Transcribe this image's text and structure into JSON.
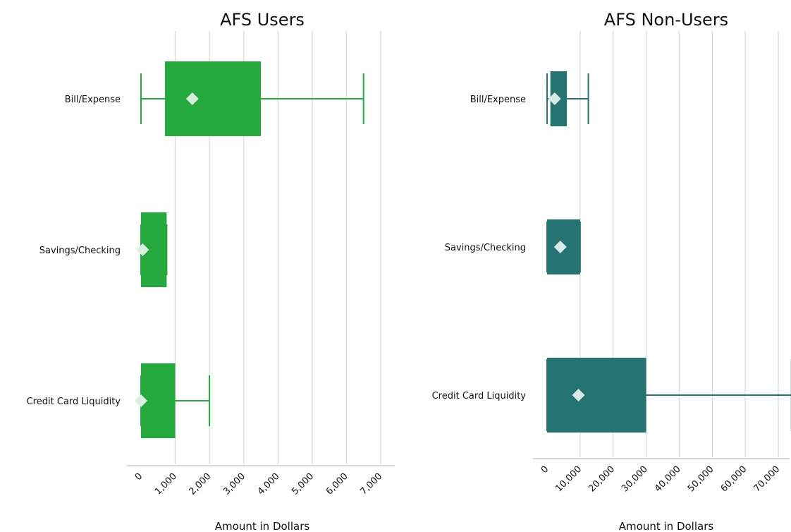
{
  "chart_data": [
    {
      "type": "box",
      "title": "AFS Users",
      "xlabel": "Amount in Dollars",
      "xlim": [
        -400,
        7400
      ],
      "xticks": [
        0,
        1000,
        2000,
        3000,
        4000,
        5000,
        6000,
        7000
      ],
      "xtick_labels": [
        "0",
        "1,000",
        "2,000",
        "3,000",
        "4,000",
        "5,000",
        "6,000",
        "7,000"
      ],
      "grid": true,
      "color": "#25a83e",
      "mean_marker_color": "#d9eedc",
      "categories": [
        "Bill/Expense",
        "Savings/Checking",
        "Credit Card Liquidity"
      ],
      "boxes": [
        {
          "category": "Bill/Expense",
          "min": 0,
          "q1": 700,
          "median": 700,
          "q3": 3500,
          "max": 6500,
          "mean": 1500
        },
        {
          "category": "Savings/Checking",
          "min": 0,
          "q1": 0,
          "median": 0,
          "q3": 750,
          "max": 750,
          "mean": 50
        },
        {
          "category": "Credit Card Liquidity",
          "min": 0,
          "q1": 0,
          "median": 0,
          "q3": 1000,
          "max": 2000,
          "mean": 0
        }
      ]
    },
    {
      "type": "box",
      "title": "AFS Non-Users",
      "xlabel": "Amount in Dollars",
      "xlim": [
        -4000,
        75500
      ],
      "xticks": [
        0,
        10000,
        20000,
        30000,
        40000,
        50000,
        60000,
        70000
      ],
      "xtick_labels": [
        "0",
        "10,000",
        "20,000",
        "30,000",
        "40,000",
        "50,000",
        "60,000",
        "70,000"
      ],
      "grid": true,
      "color": "#257472",
      "mean_marker_color": "#d9eae8",
      "categories": [
        "Bill/Expense",
        "Savings/Checking",
        "Credit Card Liquidity"
      ],
      "boxes": [
        {
          "category": "Bill/Expense",
          "min": 0,
          "q1": 1000,
          "median": 1000,
          "q3": 6000,
          "max": 12500,
          "mean": 2300
        },
        {
          "category": "Savings/Checking",
          "min": 0,
          "q1": 0,
          "median": 0,
          "q3": 10000,
          "max": 10000,
          "mean": 4000
        },
        {
          "category": "Credit Card Liquidity",
          "min": 0,
          "q1": 0,
          "median": 0,
          "q3": 30000,
          "max": 74000,
          "mean": 9500
        }
      ]
    }
  ]
}
